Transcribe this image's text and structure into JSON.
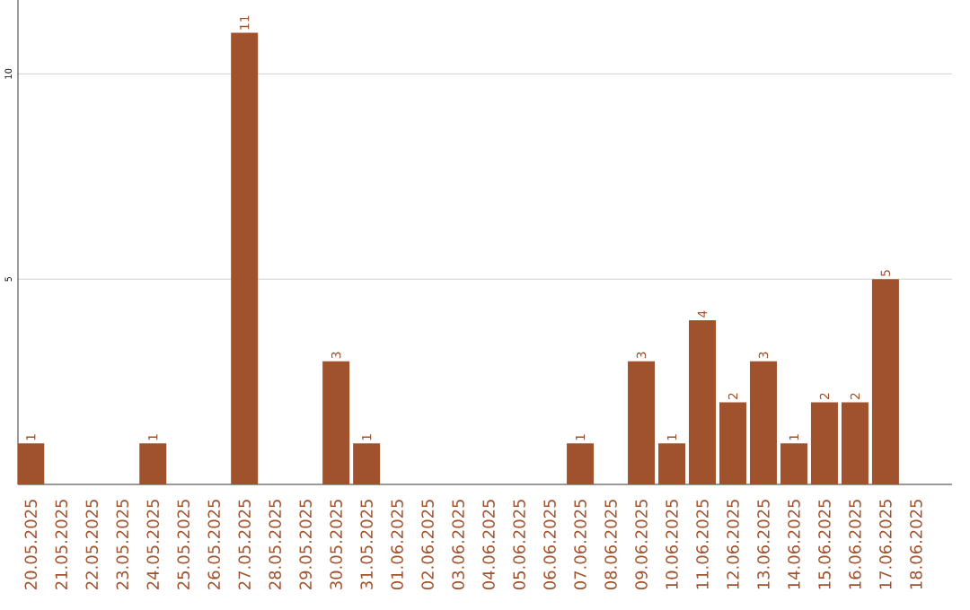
{
  "chart_data": {
    "type": "bar",
    "categories": [
      "20.05.2025",
      "21.05.2025",
      "22.05.2025",
      "23.05.2025",
      "24.05.2025",
      "25.05.2025",
      "26.05.2025",
      "27.05.2025",
      "28.05.2025",
      "29.05.2025",
      "30.05.2025",
      "31.05.2025",
      "01.06.2025",
      "02.06.2025",
      "03.06.2025",
      "04.06.2025",
      "05.06.2025",
      "06.06.2025",
      "07.06.2025",
      "08.06.2025",
      "09.06.2025",
      "10.06.2025",
      "11.06.2025",
      "12.06.2025",
      "13.06.2025",
      "14.06.2025",
      "15.06.2025",
      "16.06.2025",
      "17.06.2025",
      "18.06.2025"
    ],
    "values": [
      1,
      0,
      0,
      0,
      1,
      0,
      0,
      11,
      0,
      0,
      3,
      1,
      0,
      0,
      0,
      0,
      0,
      0,
      1,
      0,
      3,
      1,
      4,
      2,
      3,
      1,
      2,
      2,
      5,
      0
    ],
    "value_labels": [
      "1",
      null,
      null,
      null,
      "1",
      null,
      null,
      "11",
      null,
      null,
      "3",
      "1",
      null,
      null,
      null,
      null,
      null,
      null,
      "1",
      null,
      "3",
      "1",
      "4",
      "2",
      "3",
      "1",
      "2",
      "2",
      "5",
      null
    ],
    "color": "#a0522d",
    "ylim": [
      0,
      11.8
    ],
    "yticks": [
      5,
      10
    ],
    "grid": "y"
  }
}
